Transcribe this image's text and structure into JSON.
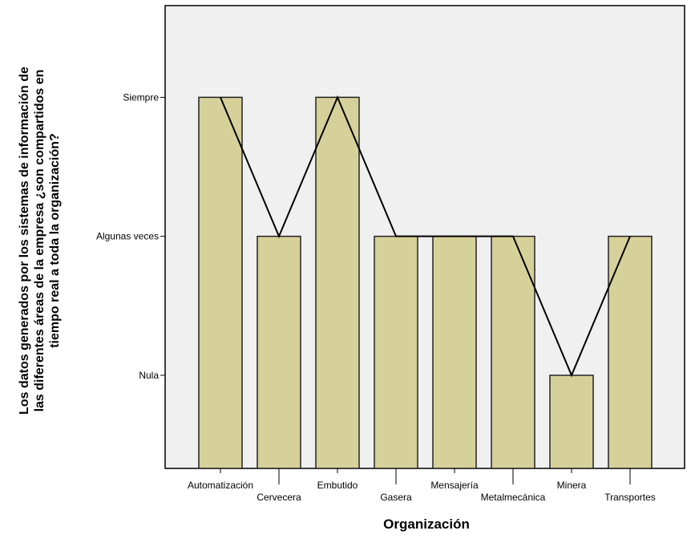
{
  "chart_data": {
    "type": "bar",
    "categories": [
      "Automatización",
      "Cervecera",
      "Embutido",
      "Gasera",
      "Mensajería",
      "Metalmecánica",
      "Minera",
      "Transportes"
    ],
    "values": [
      3,
      2,
      3,
      2,
      2,
      2,
      1,
      2
    ],
    "value_scale": {
      "1": "Nula",
      "2": "Algunas veces",
      "3": "Siempre"
    },
    "y_ticks": [
      {
        "value": 3,
        "label": "Siempre"
      },
      {
        "value": 2,
        "label": "Algunas veces"
      },
      {
        "value": 1,
        "label": "Nula"
      }
    ],
    "ylim": [
      0.33,
      3.66
    ],
    "overlay_line": true,
    "xlabel": "Organización",
    "ylabel_lines": [
      "Los datos generados por los sistemas de información de",
      "las diferentes áreas de la empresa ¿son compartidos en",
      "tiempo real a toda la organización?"
    ],
    "grid": false,
    "legend": "none"
  },
  "colors": {
    "plot_background": "#f0f0f0",
    "bar_fill": "#d6d19a",
    "bar_stroke": "#222222",
    "line": "#000000"
  }
}
